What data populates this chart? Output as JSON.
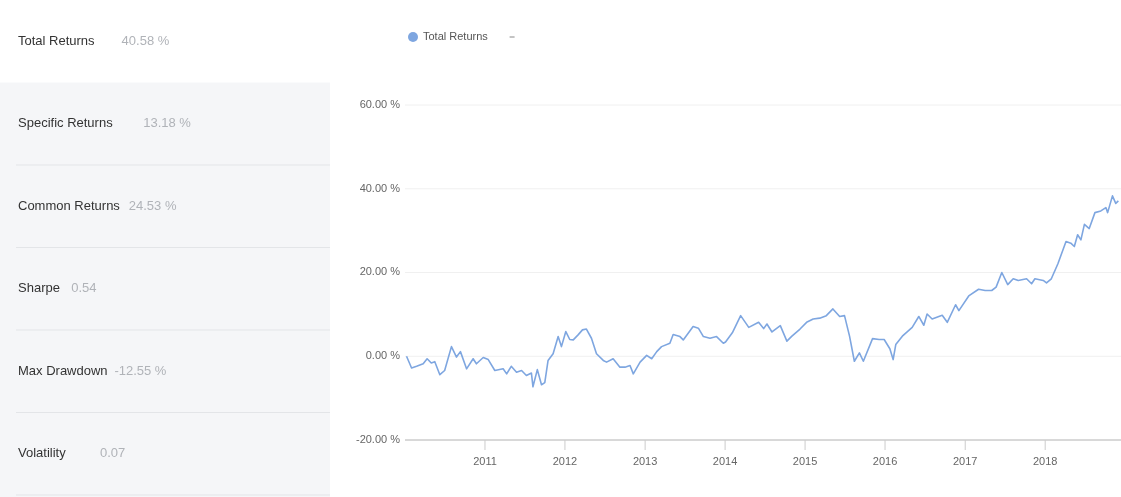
{
  "chart_data": [
    {
      "type": "other",
      "categories": [
        "Total Returns",
        "Specific Returns",
        "Common Returns",
        "Sharpe",
        "Max Drawdown",
        "Volatility"
      ],
      "value_labels": [
        "40.58 %",
        "13.18 %",
        "24.53 %",
        "0.54",
        "-12.55 %",
        "0.07"
      ]
    },
    {
      "type": "line",
      "legend": "top left",
      "grid": "y",
      "marker": "none",
      "line_style": "solid",
      "xlim": [
        "2010-01-01",
        "2018-12-13"
      ],
      "xticks": [
        "2011",
        "2012",
        "2013",
        "2014",
        "2015",
        "2016",
        "2017",
        "2018"
      ],
      "ylim": [
        -20,
        60
      ],
      "yticks": [
        {
          "value": -20,
          "label": "-20.00 %"
        },
        {
          "value": 0,
          "label": "0.00 %"
        },
        {
          "value": 20,
          "label": "20.00 %"
        },
        {
          "value": 40,
          "label": "40.00 %"
        },
        {
          "value": 60,
          "label": "60.00 %"
        }
      ],
      "x": [
        "2010-01-08",
        "2010-01-31",
        "2010-02-23",
        "2010-03-25",
        "2010-04-12",
        "2010-05-01",
        "2010-05-17",
        "2010-06-09",
        "2010-07-01",
        "2010-08-01",
        "2010-08-24",
        "2010-09-11",
        "2010-10-09",
        "2010-11-08",
        "2010-11-23",
        "2010-12-24",
        "2011-01-16",
        "2011-02-15",
        "2011-03-25",
        "2011-04-10",
        "2011-05-01",
        "2011-05-25",
        "2011-06-17",
        "2011-07-09",
        "2011-08-01",
        "2011-08-08",
        "2011-08-28",
        "2011-09-16",
        "2011-10-01",
        "2011-10-16",
        "2011-11-08",
        "2011-12-01",
        "2011-12-16",
        "2012-01-05",
        "2012-01-23",
        "2012-02-08",
        "2012-03-01",
        "2012-03-21",
        "2012-04-08",
        "2012-05-01",
        "2012-05-24",
        "2012-06-24",
        "2012-07-09",
        "2012-08-08",
        "2012-09-08",
        "2012-10-01",
        "2012-10-24",
        "2012-11-08",
        "2012-12-09",
        "2013-01-08",
        "2013-01-31",
        "2013-02-23",
        "2013-03-17",
        "2013-04-24",
        "2013-05-09",
        "2013-06-09",
        "2013-06-24",
        "2013-08-08",
        "2013-09-01",
        "2013-09-24",
        "2013-10-24",
        "2013-11-23",
        "2013-12-24",
        "2014-01-03",
        "2014-02-03",
        "2014-03-13",
        "2014-04-19",
        "2014-06-03",
        "2014-06-26",
        "2014-07-11",
        "2014-08-03",
        "2014-09-10",
        "2014-10-10",
        "2014-11-02",
        "2014-12-09",
        "2015-01-08",
        "2015-02-07",
        "2015-03-09",
        "2015-04-08",
        "2015-05-08",
        "2015-06-08",
        "2015-06-30",
        "2015-07-23",
        "2015-08-14",
        "2015-09-06",
        "2015-09-24",
        "2015-11-05",
        "2015-12-05",
        "2015-12-28",
        "2016-01-23",
        "2016-02-07",
        "2016-02-19",
        "2016-03-20",
        "2016-05-04",
        "2016-06-03",
        "2016-06-26",
        "2016-07-11",
        "2016-08-03",
        "2016-09-18",
        "2016-10-11",
        "2016-11-18",
        "2016-12-03",
        "2017-01-17",
        "2017-03-03",
        "2017-04-02",
        "2017-05-02",
        "2017-05-22",
        "2017-06-17",
        "2017-07-14",
        "2017-08-08",
        "2017-08-31",
        "2017-10-08",
        "2017-10-31",
        "2017-11-15",
        "2017-12-23",
        "2018-01-07",
        "2018-01-29",
        "2018-02-28",
        "2018-04-06",
        "2018-04-28",
        "2018-05-14",
        "2018-05-29",
        "2018-06-13",
        "2018-06-29",
        "2018-07-21",
        "2018-08-16",
        "2018-09-12",
        "2018-10-05",
        "2018-10-13",
        "2018-11-04",
        "2018-11-19",
        "2018-12-01"
      ],
      "series": [
        {
          "name": "Total Returns",
          "color": "#7ea6e0",
          "values": [
            0,
            -2.8,
            -2.4,
            -1.8,
            -0.6,
            -1.6,
            -1.3,
            -4.4,
            -3.4,
            2.3,
            -0.2,
            1.1,
            -3,
            -0.6,
            -1.8,
            -0.3,
            -0.8,
            -3.4,
            -3,
            -4.2,
            -2.4,
            -3.8,
            -3.4,
            -4.6,
            -4,
            -7.3,
            -3.2,
            -6.8,
            -6.3,
            -1,
            0.6,
            4.7,
            2.3,
            5.9,
            4.0,
            3.9,
            5.1,
            6.3,
            6.5,
            4.3,
            0.6,
            -1,
            -1.4,
            -0.6,
            -2.6,
            -2.6,
            -2.2,
            -4.2,
            -1.4,
            0.2,
            -0.6,
            1.1,
            2.3,
            3.1,
            5.2,
            4.7,
            3.9,
            7.1,
            6.7,
            4.7,
            4.3,
            4.7,
            3.1,
            3.4,
            5.6,
            9.7,
            6.9,
            8.1,
            6.6,
            7.7,
            5.8,
            7.3,
            3.6,
            4.8,
            6.5,
            8.1,
            8.9,
            9.1,
            9.7,
            11.3,
            9.5,
            9.7,
            4.8,
            -1.2,
            0.8,
            -1.2,
            4.2,
            4.0,
            4.0,
            1.8,
            -0.8,
            2.8,
            4.8,
            6.9,
            9.5,
            7.4,
            10.1,
            8.9,
            9.8,
            8.1,
            12.3,
            10.9,
            14.4,
            16.0,
            15.7,
            15.7,
            16.5,
            20.0,
            17.1,
            18.5,
            18.1,
            18.5,
            17.3,
            18.5,
            18.1,
            17.5,
            18.5,
            22.1,
            27.4,
            27.0,
            26.2,
            29.0,
            27.8,
            31.5,
            30.5,
            34.3,
            34.7,
            35.5,
            34.3,
            38.3,
            36.5,
            37.1
          ]
        }
      ]
    }
  ]
}
